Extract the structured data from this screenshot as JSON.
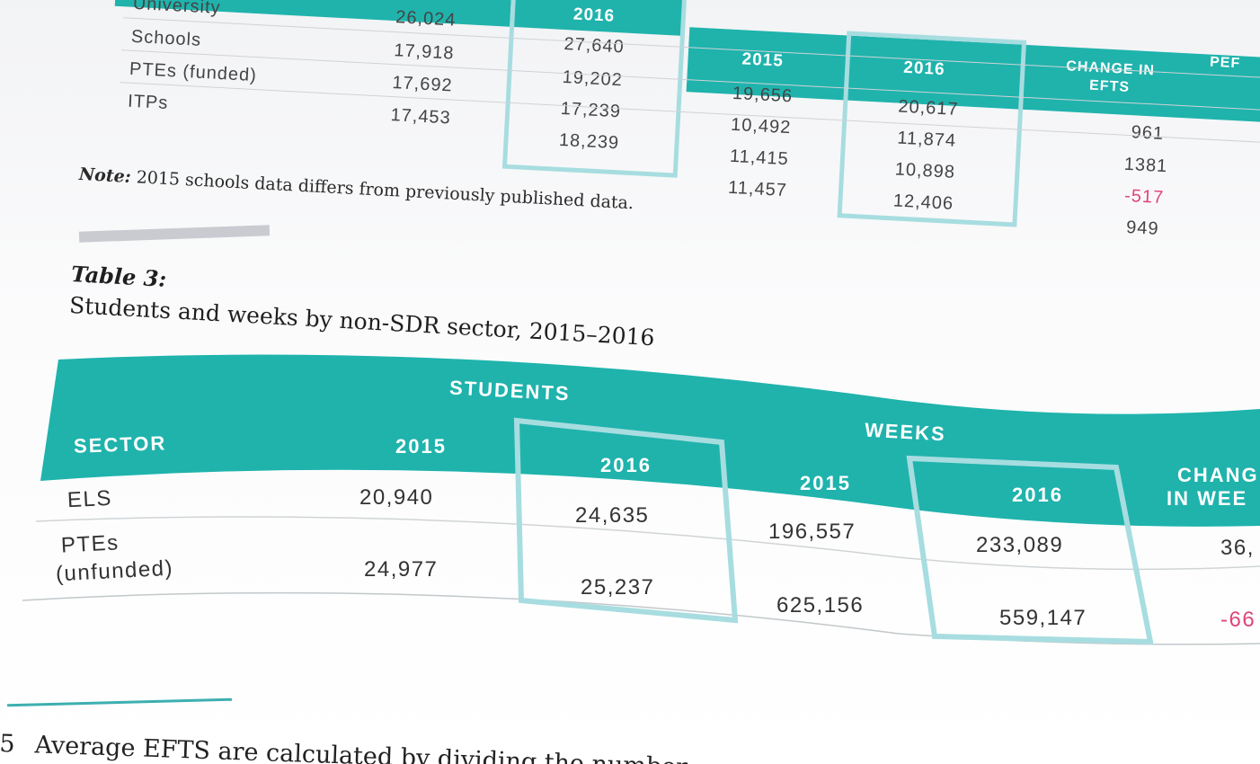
{
  "table2": {
    "headers": {
      "students_2016": "2016",
      "efts_2015": "2015",
      "efts_2016": "2016",
      "change_in_efts": "CHANGE IN EFTS",
      "per_partial": "PEF"
    },
    "rows": [
      {
        "sector": "University",
        "students_2015": "26,024",
        "students_2016": "27,640",
        "efts_2015": "19,656",
        "efts_2016": "20,617",
        "change": "961"
      },
      {
        "sector": "Schools",
        "students_2015": "17,918",
        "students_2016": "19,202",
        "efts_2015": "10,492",
        "efts_2016": "11,874",
        "change": "1381"
      },
      {
        "sector": "PTEs (funded)",
        "students_2015": "17,692",
        "students_2016": "17,239",
        "efts_2015": "11,415",
        "efts_2016": "10,898",
        "change": "-517"
      },
      {
        "sector": "ITPs",
        "students_2015": "17,453",
        "students_2016": "18,239",
        "efts_2015": "11,457",
        "efts_2016": "12,406",
        "change": "949"
      }
    ],
    "note_label": "Note:",
    "note_text": " 2015 schools data differs from previously published data."
  },
  "table3": {
    "label": "Table 3:",
    "title": "Students and weeks by non-SDR sector, 2015–2016",
    "headers": {
      "students": "STUDENTS",
      "weeks": "WEEKS",
      "sector": "SECTOR",
      "students_2015": "2015",
      "students_2016": "2016",
      "weeks_2015": "2015",
      "weeks_2016": "2016",
      "change_line1": "CHANG",
      "change_line2": "IN WEE"
    },
    "rows": [
      {
        "sector": "ELS",
        "students_2015": "20,940",
        "students_2016": "24,635",
        "weeks_2015": "196,557",
        "weeks_2016": "233,089",
        "change": "36,"
      },
      {
        "sector_line1": "PTEs",
        "sector_line2": "(unfunded)",
        "students_2015": "24,977",
        "students_2016": "25,237",
        "weeks_2015": "625,156",
        "weeks_2016": "559,147",
        "change": "-66"
      }
    ]
  },
  "footnote": {
    "number": "5",
    "text": "Average EFTS are calculated by dividing the number"
  },
  "colors": {
    "teal": "#1fb3ac",
    "box_outline": "#a7dde0",
    "negative": "#e0457b"
  }
}
